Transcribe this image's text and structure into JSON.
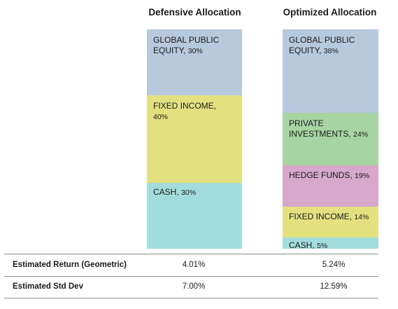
{
  "chart_data": {
    "type": "bar",
    "stacked": true,
    "categories": [
      "Defensive Allocation",
      "Optimized Allocation"
    ],
    "columns": [
      {
        "title": "Defensive Allocation",
        "segments": [
          {
            "name": "GLOBAL PUBLIC EQUITY",
            "value": 30,
            "label": "30%",
            "color": "#b7c9dc"
          },
          {
            "name": "FIXED INCOME",
            "value": 40,
            "label": "40%",
            "color": "#e3e17f"
          },
          {
            "name": "CASH",
            "value": 30,
            "label": "30%",
            "color": "#a3dcdc"
          }
        ]
      },
      {
        "title": "Optimized Allocation",
        "segments": [
          {
            "name": "GLOBAL PUBLIC EQUITY",
            "value": 38,
            "label": "38%",
            "color": "#b7c9dc"
          },
          {
            "name": "PRIVATE INVESTMENTS",
            "value": 24,
            "label": "24%",
            "color": "#a6d4a3"
          },
          {
            "name": "HEDGE FUNDS",
            "value": 19,
            "label": "19%",
            "color": "#d7a7cc"
          },
          {
            "name": "FIXED INCOME",
            "value": 14,
            "label": "14%",
            "color": "#e3e17f"
          },
          {
            "name": "CASH",
            "value": 5,
            "label": "5%",
            "color": "#a3dcdc"
          }
        ]
      }
    ],
    "table": {
      "rows": [
        {
          "label": "Estimated Return (Geometric)",
          "values": [
            "4.01%",
            "5.24%"
          ]
        },
        {
          "label": "Estimated Std Dev",
          "values": [
            "7.00%",
            "12.59%"
          ]
        }
      ]
    }
  }
}
